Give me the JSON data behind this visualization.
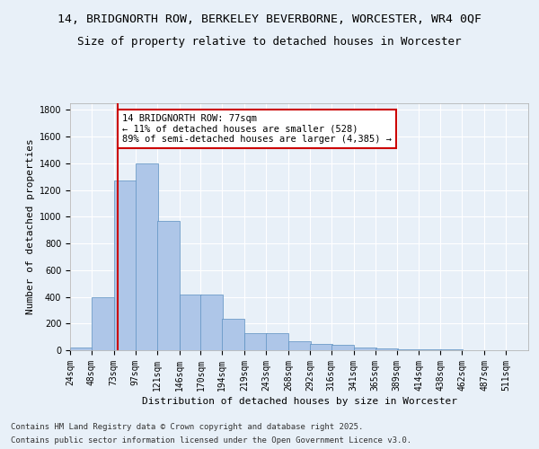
{
  "title_line1": "14, BRIDGNORTH ROW, BERKELEY BEVERBORNE, WORCESTER, WR4 0QF",
  "title_line2": "Size of property relative to detached houses in Worcester",
  "xlabel": "Distribution of detached houses by size in Worcester",
  "ylabel": "Number of detached properties",
  "bin_labels": [
    "24sqm",
    "48sqm",
    "73sqm",
    "97sqm",
    "121sqm",
    "146sqm",
    "170sqm",
    "194sqm",
    "219sqm",
    "243sqm",
    "268sqm",
    "292sqm",
    "316sqm",
    "341sqm",
    "365sqm",
    "389sqm",
    "414sqm",
    "438sqm",
    "462sqm",
    "487sqm",
    "511sqm"
  ],
  "bin_edges": [
    24,
    48,
    73,
    97,
    121,
    146,
    170,
    194,
    219,
    243,
    268,
    292,
    316,
    341,
    365,
    389,
    414,
    438,
    462,
    487,
    511
  ],
  "bar_values": [
    20,
    395,
    1270,
    1400,
    970,
    415,
    415,
    235,
    130,
    130,
    70,
    50,
    40,
    20,
    15,
    10,
    5,
    5,
    2,
    2,
    1
  ],
  "bar_color": "#aec6e8",
  "bar_edgecolor": "#5a8fc0",
  "bg_color": "#e8f0f8",
  "grid_color": "#ffffff",
  "vline_x": 77,
  "vline_color": "#cc0000",
  "annotation_text": "14 BRIDGNORTH ROW: 77sqm\n← 11% of detached houses are smaller (528)\n89% of semi-detached houses are larger (4,385) →",
  "annotation_box_edgecolor": "#cc0000",
  "ylim": [
    0,
    1850
  ],
  "yticks": [
    0,
    200,
    400,
    600,
    800,
    1000,
    1200,
    1400,
    1600,
    1800
  ],
  "footnote1": "Contains HM Land Registry data © Crown copyright and database right 2025.",
  "footnote2": "Contains public sector information licensed under the Open Government Licence v3.0.",
  "title_fontsize": 9.5,
  "subtitle_fontsize": 9,
  "axis_label_fontsize": 8,
  "tick_fontsize": 7,
  "annotation_fontsize": 7.5,
  "footnote_fontsize": 6.5
}
